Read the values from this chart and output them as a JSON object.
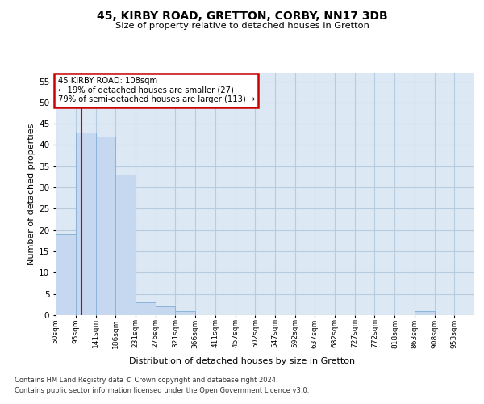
{
  "title1": "45, KIRBY ROAD, GRETTON, CORBY, NN17 3DB",
  "title2": "Size of property relative to detached houses in Gretton",
  "xlabel": "Distribution of detached houses by size in Gretton",
  "ylabel": "Number of detached properties",
  "categories": [
    "50sqm",
    "95sqm",
    "141sqm",
    "186sqm",
    "231sqm",
    "276sqm",
    "321sqm",
    "366sqm",
    "411sqm",
    "457sqm",
    "502sqm",
    "547sqm",
    "592sqm",
    "637sqm",
    "682sqm",
    "727sqm",
    "772sqm",
    "818sqm",
    "863sqm",
    "908sqm",
    "953sqm"
  ],
  "values": [
    19,
    43,
    42,
    33,
    3,
    2,
    1,
    0,
    0,
    0,
    0,
    0,
    0,
    0,
    0,
    0,
    0,
    0,
    1,
    0,
    0
  ],
  "bar_color": "#c5d8ef",
  "bar_edge_color": "#8ab4d8",
  "grid_color": "#b8cce0",
  "background_color": "#dce8f4",
  "vline_color": "#cc0000",
  "annotation_box_color": "#ffffff",
  "annotation_box_edge": "#cc0000",
  "annotation_title": "45 KIRBY ROAD: 108sqm",
  "annotation_line1": "← 19% of detached houses are smaller (27)",
  "annotation_line2": "79% of semi-detached houses are larger (113) →",
  "ylim_max": 57,
  "yticks": [
    0,
    5,
    10,
    15,
    20,
    25,
    30,
    35,
    40,
    45,
    50,
    55
  ],
  "bin_edges": [
    50,
    95,
    141,
    186,
    231,
    276,
    321,
    366,
    411,
    457,
    502,
    547,
    592,
    637,
    682,
    727,
    772,
    818,
    863,
    908,
    953,
    998
  ],
  "property_sqm": 108,
  "footer1": "Contains HM Land Registry data © Crown copyright and database right 2024.",
  "footer2": "Contains public sector information licensed under the Open Government Licence v3.0."
}
